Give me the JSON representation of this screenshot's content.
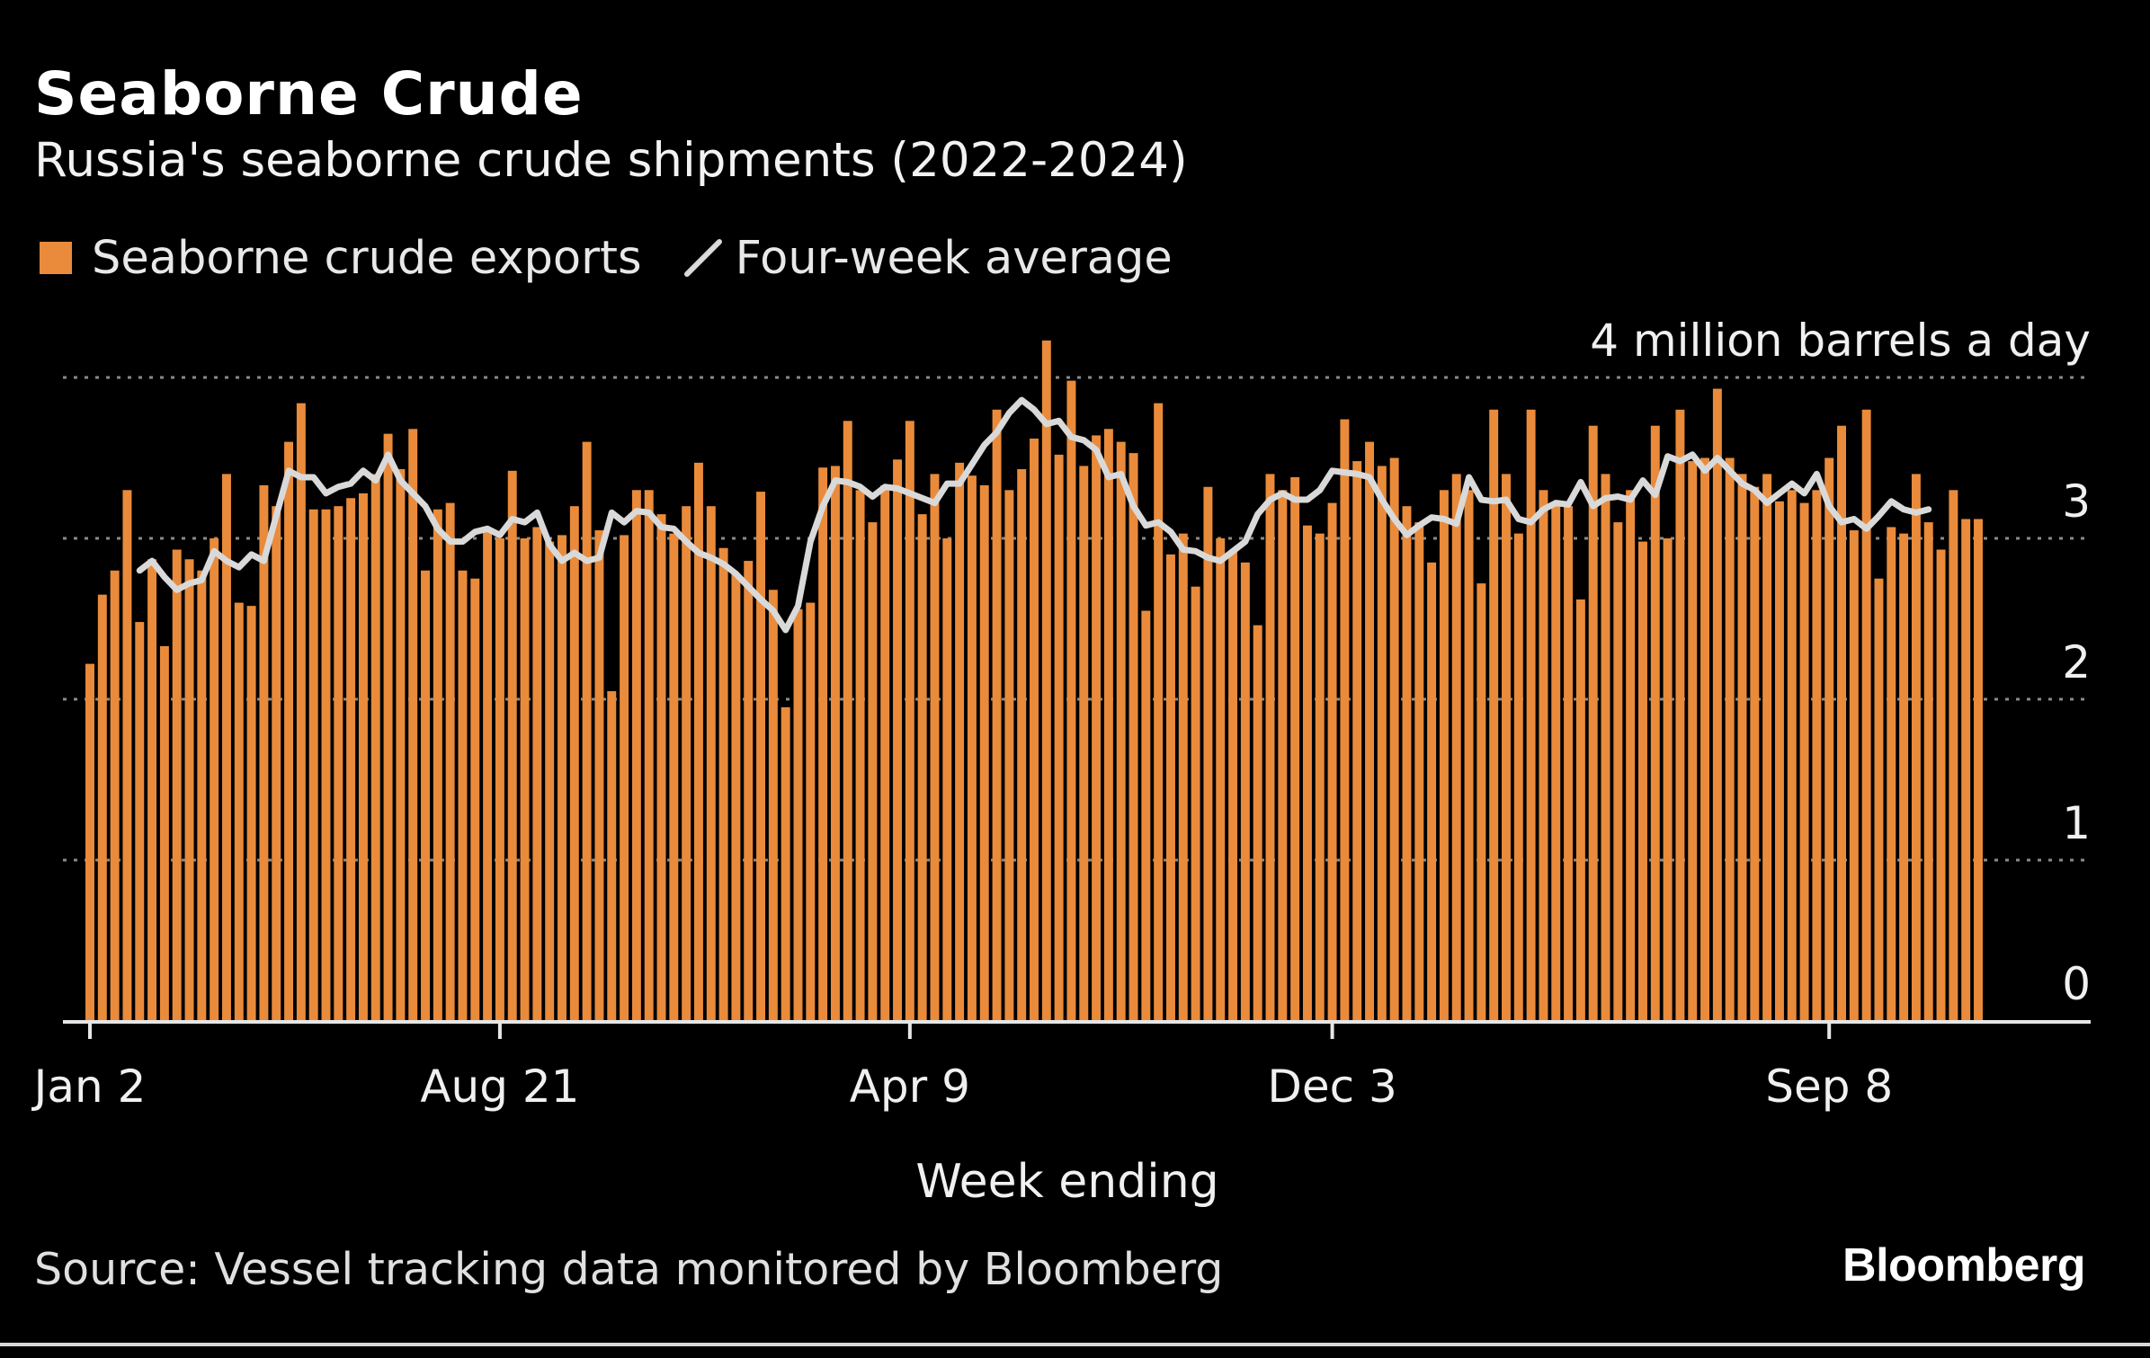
{
  "header": {
    "title": "Seaborne Crude",
    "subtitle": "Russia's seaborne crude shipments (2022-2024)"
  },
  "legend": {
    "bars_label": "Seaborne crude exports",
    "line_label": "Four-week average"
  },
  "footer": {
    "source": "Source: Vessel tracking data monitored by Bloomberg",
    "logo": "Bloomberg"
  },
  "colors": {
    "background": "#000000",
    "bar": "#e98b3b",
    "line": "#d9d9d9",
    "grid": "#8a8a8a",
    "text": "#ffffff"
  },
  "chart_data": {
    "type": "bar",
    "title": "Seaborne Crude",
    "subtitle": "Russia's seaborne crude shipments (2022-2024)",
    "xlabel": "Week ending",
    "unit_label": "4 million barrels a day",
    "ylim": [
      0,
      4
    ],
    "yticks": [
      {
        "value": 0,
        "label": "0"
      },
      {
        "value": 1,
        "label": "1"
      },
      {
        "value": 2,
        "label": "2"
      },
      {
        "value": 3,
        "label": "3"
      },
      {
        "value": 4,
        "label": "4 million barrels a day"
      }
    ],
    "xticks": [
      {
        "index": 0,
        "label": "Jan 2"
      },
      {
        "index": 33,
        "label": "Aug 21"
      },
      {
        "index": 66,
        "label": "Apr 9"
      },
      {
        "index": 100,
        "label": "Dec 3"
      },
      {
        "index": 140,
        "label": "Sep 8"
      }
    ],
    "grid": true,
    "legend_position": "top-left",
    "series": [
      {
        "name": "Seaborne crude exports",
        "type": "bar",
        "values": [
          2.22,
          2.65,
          2.8,
          3.3,
          2.48,
          2.87,
          2.33,
          2.93,
          2.87,
          2.8,
          3.0,
          3.4,
          2.6,
          2.58,
          3.33,
          3.2,
          3.6,
          3.84,
          3.18,
          3.18,
          3.2,
          3.25,
          3.28,
          3.4,
          3.65,
          3.43,
          3.68,
          2.8,
          3.18,
          3.22,
          2.8,
          2.75,
          3.04,
          3.0,
          3.42,
          3.0,
          3.07,
          2.98,
          3.02,
          3.2,
          3.6,
          3.05,
          2.05,
          3.02,
          3.3,
          3.3,
          3.15,
          3.03,
          3.2,
          3.47,
          3.2,
          2.94,
          2.78,
          2.86,
          3.29,
          2.68,
          1.95,
          2.56,
          2.6,
          3.44,
          3.45,
          3.73,
          3.3,
          3.1,
          3.33,
          3.49,
          3.73,
          3.15,
          3.4,
          3.0,
          3.47,
          3.39,
          3.33,
          3.8,
          3.3,
          3.43,
          3.62,
          4.23,
          3.52,
          3.98,
          3.45,
          3.64,
          3.68,
          3.6,
          3.53,
          2.55,
          3.84,
          2.9,
          3.03,
          2.7,
          3.32,
          3.0,
          2.92,
          2.85,
          2.46,
          3.4,
          3.3,
          3.38,
          3.08,
          3.03,
          3.22,
          3.74,
          3.48,
          3.6,
          3.45,
          3.5,
          3.2,
          3.1,
          2.85,
          3.3,
          3.4,
          3.3,
          2.72,
          3.8,
          3.4,
          3.03,
          3.8,
          3.3,
          3.2,
          3.2,
          2.62,
          3.7,
          3.4,
          3.1,
          3.3,
          2.98,
          3.7,
          3.0,
          3.8,
          3.48,
          3.5,
          3.93,
          3.5,
          3.4,
          3.32,
          3.4,
          3.23,
          3.3,
          3.22,
          3.3,
          3.5,
          3.7,
          3.05,
          3.8,
          2.75,
          3.07,
          3.03,
          3.4,
          3.1,
          2.93,
          3.3,
          3.12,
          3.12
        ],
        "color": "#e98b3b"
      },
      {
        "name": "Four-week average",
        "type": "line",
        "start_index": 4,
        "values": [
          2.8,
          2.86,
          2.76,
          2.68,
          2.72,
          2.74,
          2.92,
          2.86,
          2.82,
          2.9,
          2.86,
          3.14,
          3.42,
          3.38,
          3.38,
          3.28,
          3.32,
          3.34,
          3.42,
          3.36,
          3.52,
          3.36,
          3.28,
          3.2,
          3.06,
          2.98,
          2.98,
          3.04,
          3.06,
          3.02,
          3.12,
          3.1,
          3.16,
          2.96,
          2.86,
          2.91,
          2.86,
          2.88,
          3.16,
          3.1,
          3.17,
          3.16,
          3.07,
          3.06,
          2.98,
          2.91,
          2.88,
          2.84,
          2.78,
          2.7,
          2.62,
          2.55,
          2.43,
          2.58,
          2.98,
          3.2,
          3.36,
          3.35,
          3.32,
          3.26,
          3.32,
          3.31,
          3.28,
          3.25,
          3.22,
          3.34,
          3.34,
          3.46,
          3.58,
          3.66,
          3.78,
          3.86,
          3.8,
          3.71,
          3.73,
          3.63,
          3.61,
          3.55,
          3.38,
          3.4,
          3.2,
          3.08,
          3.1,
          3.04,
          2.93,
          2.92,
          2.88,
          2.86,
          2.92,
          2.98,
          3.15,
          3.24,
          3.28,
          3.24,
          3.24,
          3.3,
          3.42,
          3.41,
          3.4,
          3.38,
          3.24,
          3.12,
          3.02,
          3.08,
          3.13,
          3.12,
          3.09,
          3.38,
          3.24,
          3.23,
          3.24,
          3.12,
          3.1,
          3.18,
          3.22,
          3.21,
          3.35,
          3.2,
          3.25,
          3.26,
          3.24,
          3.36,
          3.27,
          3.51,
          3.48,
          3.52,
          3.42,
          3.5,
          3.42,
          3.34,
          3.3,
          3.22,
          3.28,
          3.34,
          3.28,
          3.4,
          3.2,
          3.1,
          3.12,
          3.06,
          3.14,
          3.23,
          3.18,
          3.16,
          3.18
        ]
      }
    ]
  }
}
